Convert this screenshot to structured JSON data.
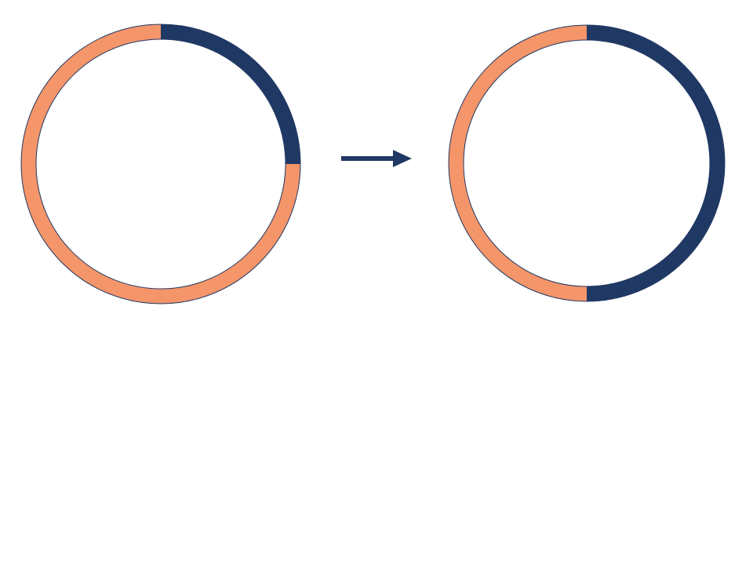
{
  "colors": {
    "background": "#ffffff",
    "highlight": "#203864",
    "base": "#f4956a",
    "outline": "#203864",
    "arrow": "#203864"
  },
  "chart_data": [
    {
      "type": "pie",
      "variant": "donut",
      "title": "",
      "slices": [
        {
          "fraction": 0.25,
          "color": "#203864"
        },
        {
          "fraction": 0.75,
          "color": "#f4956a"
        }
      ]
    },
    {
      "type": "pie",
      "variant": "donut",
      "title": "",
      "slices": [
        {
          "fraction": 0.5,
          "color": "#203864"
        },
        {
          "fraction": 0.5,
          "color": "#f4956a"
        }
      ]
    }
  ],
  "connector": {
    "icon": "right-arrow-icon"
  }
}
